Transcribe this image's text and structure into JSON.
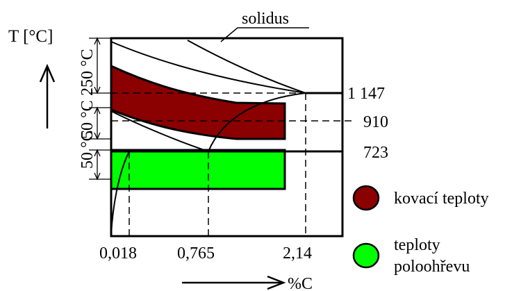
{
  "labels": {
    "t_axis": "T [°C]",
    "c_axis": "%C",
    "solidus": "solidus",
    "range_250": "250 °C",
    "range_50_a": "50 °C",
    "range_50_b": "50 °C"
  },
  "temperatures": [
    "1 147",
    "910",
    "723"
  ],
  "carbon_ticks": [
    "0,018",
    "0,765",
    "2,14"
  ],
  "legend": {
    "forging": {
      "label": "kovací teploty",
      "color": "#8b0000"
    },
    "preheat": {
      "label_line1": "teploty",
      "label_line2": "poloohřevu",
      "color": "#00ff00"
    }
  }
}
